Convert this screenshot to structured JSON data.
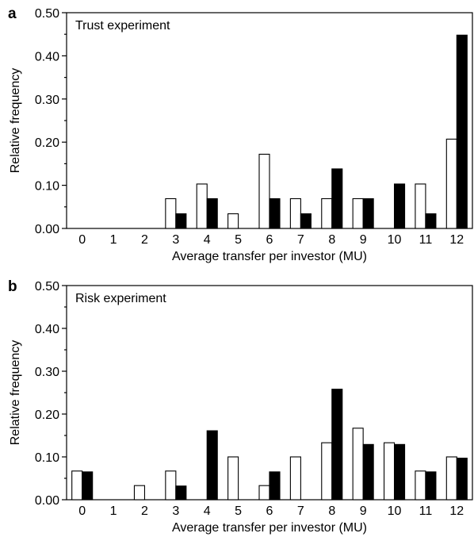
{
  "chart_data": [
    {
      "type": "bar",
      "panel_label": "a",
      "title": "Trust experiment",
      "xlabel": "Average transfer per investor (MU)",
      "ylabel": "Relative frequency",
      "ylim": [
        0,
        0.5
      ],
      "yticks": [
        "0.00",
        "0.10",
        "0.20",
        "0.30",
        "0.40",
        "0.50"
      ],
      "categories": [
        "0",
        "1",
        "2",
        "3",
        "4",
        "5",
        "6",
        "7",
        "8",
        "9",
        "10",
        "11",
        "12"
      ],
      "series": [
        {
          "fill": "#ffffff",
          "values": [
            0,
            0,
            0,
            0.069,
            0.103,
            0.034,
            0.172,
            0.069,
            0.069,
            0.069,
            0,
            0.103,
            0.207
          ]
        },
        {
          "fill": "#000000",
          "values": [
            0,
            0,
            0,
            0.034,
            0.069,
            0,
            0.069,
            0.034,
            0.138,
            0.069,
            0.103,
            0.034,
            0.448
          ]
        }
      ]
    },
    {
      "type": "bar",
      "panel_label": "b",
      "title": "Risk experiment",
      "xlabel": "Average transfer per investor (MU)",
      "ylabel": "Relative frequency",
      "ylim": [
        0,
        0.5
      ],
      "yticks": [
        "0.00",
        "0.10",
        "0.20",
        "0.30",
        "0.40",
        "0.50"
      ],
      "categories": [
        "0",
        "1",
        "2",
        "3",
        "4",
        "5",
        "6",
        "7",
        "8",
        "9",
        "10",
        "11",
        "12"
      ],
      "series": [
        {
          "fill": "#ffffff",
          "values": [
            0.067,
            0,
            0.033,
            0.067,
            0,
            0.1,
            0.033,
            0.1,
            0.133,
            0.167,
            0.133,
            0.067,
            0.1
          ]
        },
        {
          "fill": "#000000",
          "values": [
            0.065,
            0,
            0,
            0.032,
            0.161,
            0,
            0.065,
            0,
            0.258,
            0.129,
            0.129,
            0.065,
            0.097
          ]
        }
      ]
    }
  ]
}
